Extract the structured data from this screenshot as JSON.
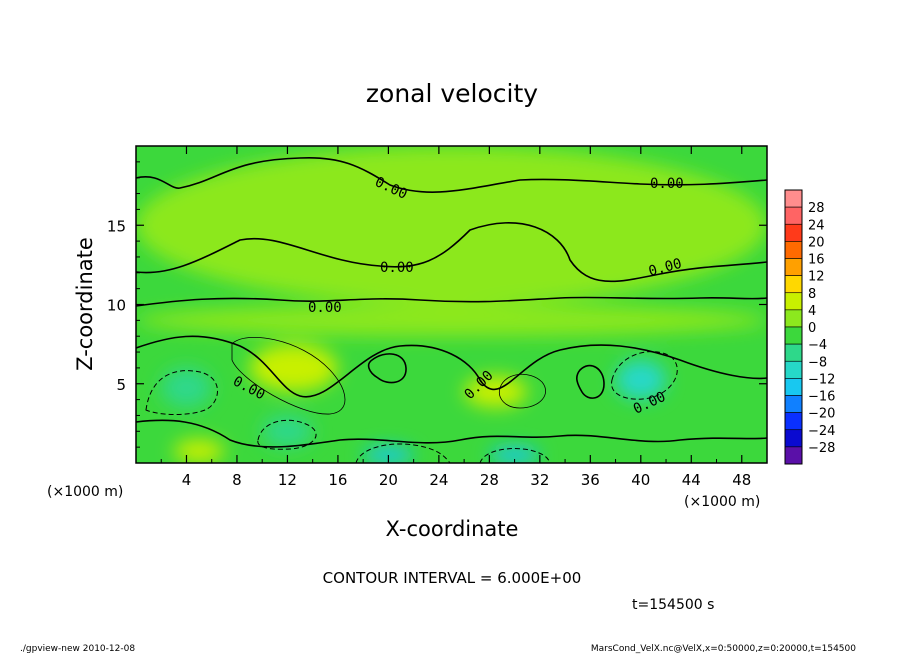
{
  "chart_data": {
    "type": "heatmap",
    "title": "zonal velocity",
    "xlabel": "X-coordinate",
    "ylabel": "Z-coordinate",
    "x_units": "(×1000 m)",
    "y_units": "(×1000 m)",
    "xlim": [
      0,
      50
    ],
    "ylim": [
      0,
      20
    ],
    "x_ticks": [
      4,
      8,
      12,
      16,
      20,
      24,
      28,
      32,
      36,
      40,
      44,
      48
    ],
    "y_ticks": [
      5,
      10,
      15
    ],
    "contour_interval_text": "CONTOUR INTERVAL = 6.000E+00",
    "time_text": "t=154500 s",
    "contour_labels": [
      "0.00",
      "0.00",
      "0.00",
      "0.00",
      "0.00",
      "0.00",
      "0.00",
      "0.00"
    ],
    "colorbar": {
      "levels": [
        "28",
        "24",
        "20",
        "16",
        "12",
        "8",
        "4",
        "0",
        "−4",
        "−8",
        "−12",
        "−16",
        "−20",
        "−24",
        "−28"
      ],
      "colors": [
        "#ff8d8d",
        "#ff6464",
        "#ff3a1a",
        "#ff6a00",
        "#ffa000",
        "#ffd800",
        "#c8f000",
        "#8ce81e",
        "#3cd83c",
        "#2ed88a",
        "#26d8c8",
        "#18c8f0",
        "#1080ff",
        "#0a30ff",
        "#0a0ad0",
        "#5a10a8"
      ]
    },
    "regions": [
      {
        "value": 1.5,
        "x": [
          0,
          50
        ],
        "z": [
          10,
          20
        ]
      },
      {
        "value": 3,
        "x": [
          0,
          50
        ],
        "z": [
          8,
          10
        ]
      },
      {
        "value": 6,
        "x": [
          9,
          16
        ],
        "z": [
          4.5,
          7.5
        ]
      },
      {
        "value": -6,
        "x": [
          2,
          6
        ],
        "z": [
          3.5,
          6
        ]
      },
      {
        "value": -6,
        "x": [
          10,
          14
        ],
        "z": [
          1,
          3
        ]
      },
      {
        "value": -14,
        "x": [
          18,
          22
        ],
        "z": [
          0,
          1
        ]
      },
      {
        "value": 6,
        "x": [
          26,
          31
        ],
        "z": [
          3.5,
          5.5
        ]
      },
      {
        "value": -14,
        "x": [
          28,
          32
        ],
        "z": [
          0,
          1
        ]
      },
      {
        "value": -8,
        "x": [
          38,
          42
        ],
        "z": [
          4,
          6.5
        ]
      },
      {
        "value": 5,
        "x": [
          3,
          7
        ],
        "z": [
          0,
          1.5
        ]
      }
    ]
  },
  "footer": {
    "left": "./gpview-new  2010-12-08",
    "right": "MarsCond_VelX.nc@VelX,x=0:50000,z=0:20000,t=154500"
  }
}
